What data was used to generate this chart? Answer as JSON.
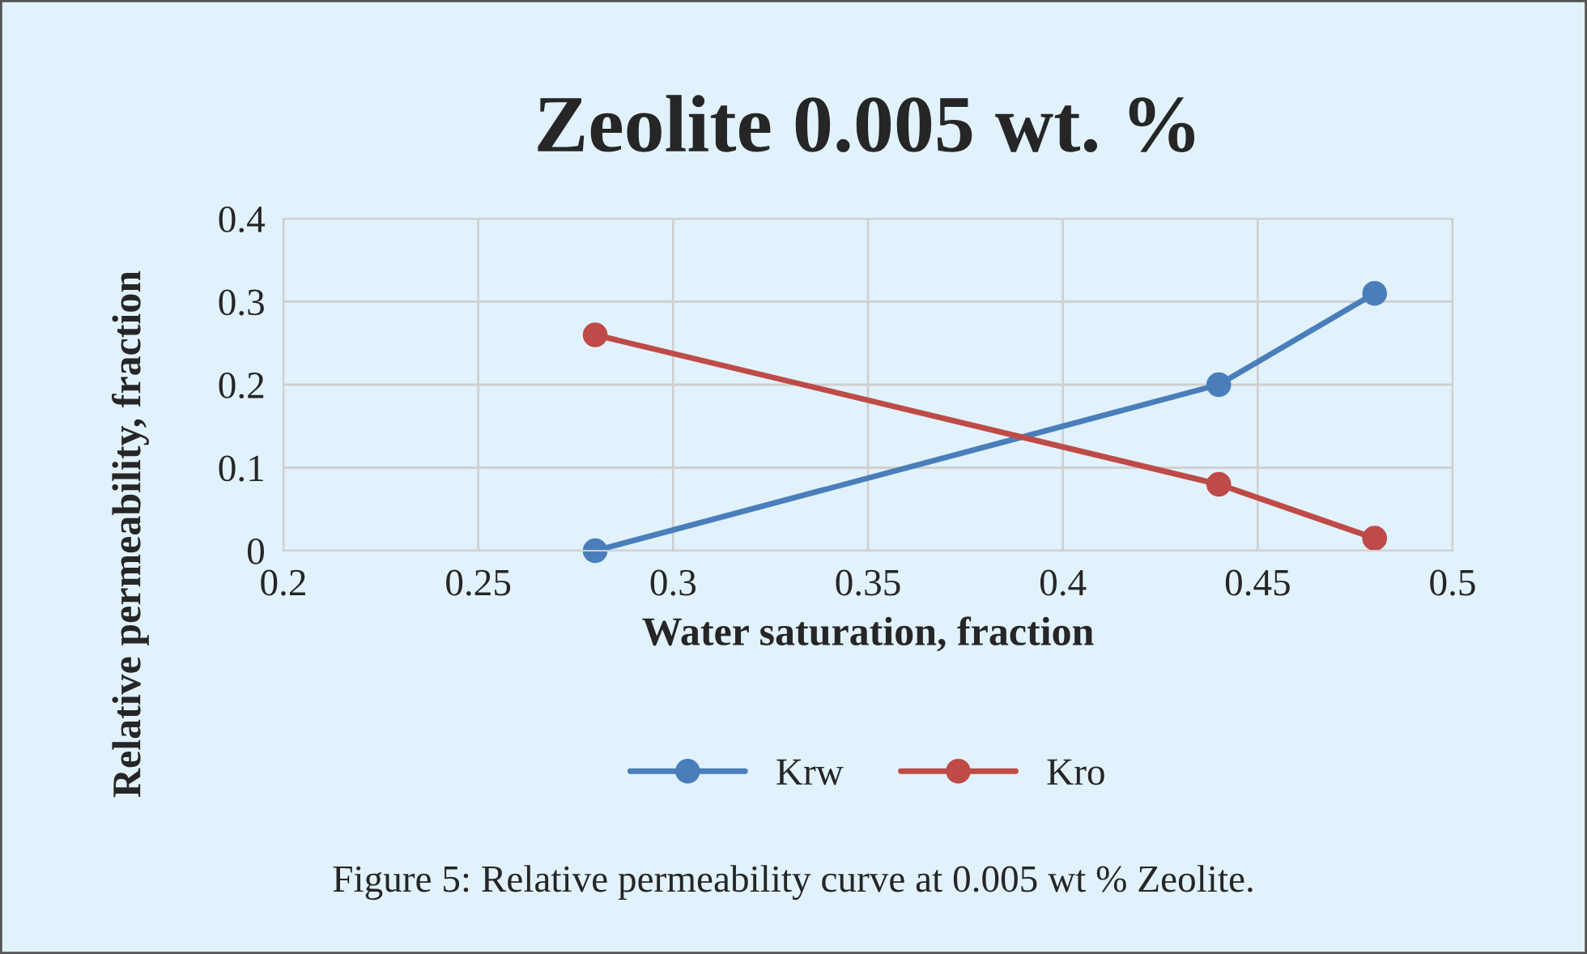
{
  "chart_data": {
    "type": "line",
    "title": "Zeolite 0.005 wt. %",
    "xlabel": "Water saturation, fraction",
    "ylabel": "Relative permeability, fraction",
    "series": [
      {
        "name": "Krw",
        "color": "#4a7ebb",
        "x": [
          0.28,
          0.44,
          0.48
        ],
        "values": [
          0,
          0.2,
          0.31
        ]
      },
      {
        "name": "Kro",
        "color": "#be4b48",
        "x": [
          0.28,
          0.44,
          0.48
        ],
        "values": [
          0.26,
          0.08,
          0.015
        ]
      }
    ],
    "xlim": [
      0.2,
      0.5
    ],
    "xticks": [
      0.2,
      0.25,
      0.3,
      0.35,
      0.4,
      0.45,
      0.5
    ],
    "ylim": [
      0,
      0.4
    ],
    "yticks": [
      0,
      0.1,
      0.2,
      0.3,
      0.4
    ],
    "grid": true,
    "legend": "bottom",
    "marker": "circle",
    "line_style": "solid",
    "annotations": [
      "Figure 5: Relative permeability curve at 0.005 wt % Zeolite."
    ]
  }
}
